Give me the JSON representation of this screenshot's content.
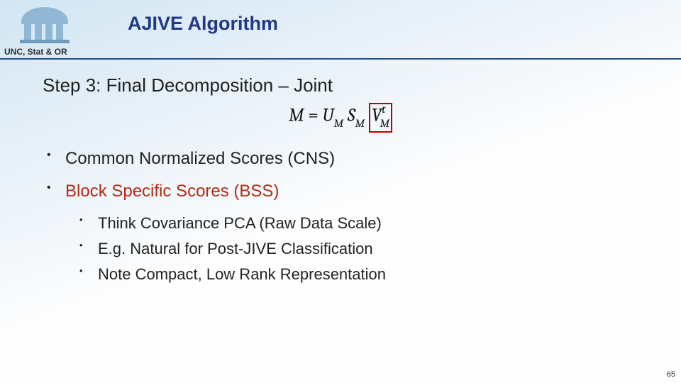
{
  "colors": {
    "title": "#203887",
    "footer": "#2d2d2d",
    "hr": "#1f4f8a",
    "step": "#1f1f1f",
    "bullet_highlight": "#b22b15",
    "bullet_normal": "#222222",
    "eq": "#111111",
    "redbox_border": "#c00000",
    "logo_fill": "#90b8d4",
    "logo_base": "#6f9bbf",
    "pagenum": "#333333"
  },
  "fontsizes": {
    "title": 27,
    "footer": 12,
    "step": 26,
    "eq": 26,
    "bullet1": 24,
    "bullet2": 22,
    "pagenum": 11
  },
  "title": "AJIVE Algorithm",
  "footer": "UNC, Stat & OR",
  "step": "Step 3: Final Decomposition – Joint",
  "equation": {
    "lhs": "M",
    "eq": " = ",
    "u": "U",
    "u_sub": "M",
    "s": "S",
    "s_sub": "M",
    "v": "V",
    "v_sub": "M",
    "v_sup": "t"
  },
  "bullets": [
    {
      "level": 1,
      "text": "Common Normalized Scores (CNS)",
      "highlight": false
    },
    {
      "level": 1,
      "text": "Block Specific Scores (BSS)",
      "highlight": true
    },
    {
      "level": 2,
      "text": "Think Covariance PCA (Raw Data Scale)",
      "highlight": false
    },
    {
      "level": 2,
      "text": "E.g. Natural for Post-JIVE Classification",
      "highlight": false
    },
    {
      "level": 2,
      "text": "Note Compact, Low Rank Representation",
      "highlight": false
    }
  ],
  "pagenum": "65"
}
